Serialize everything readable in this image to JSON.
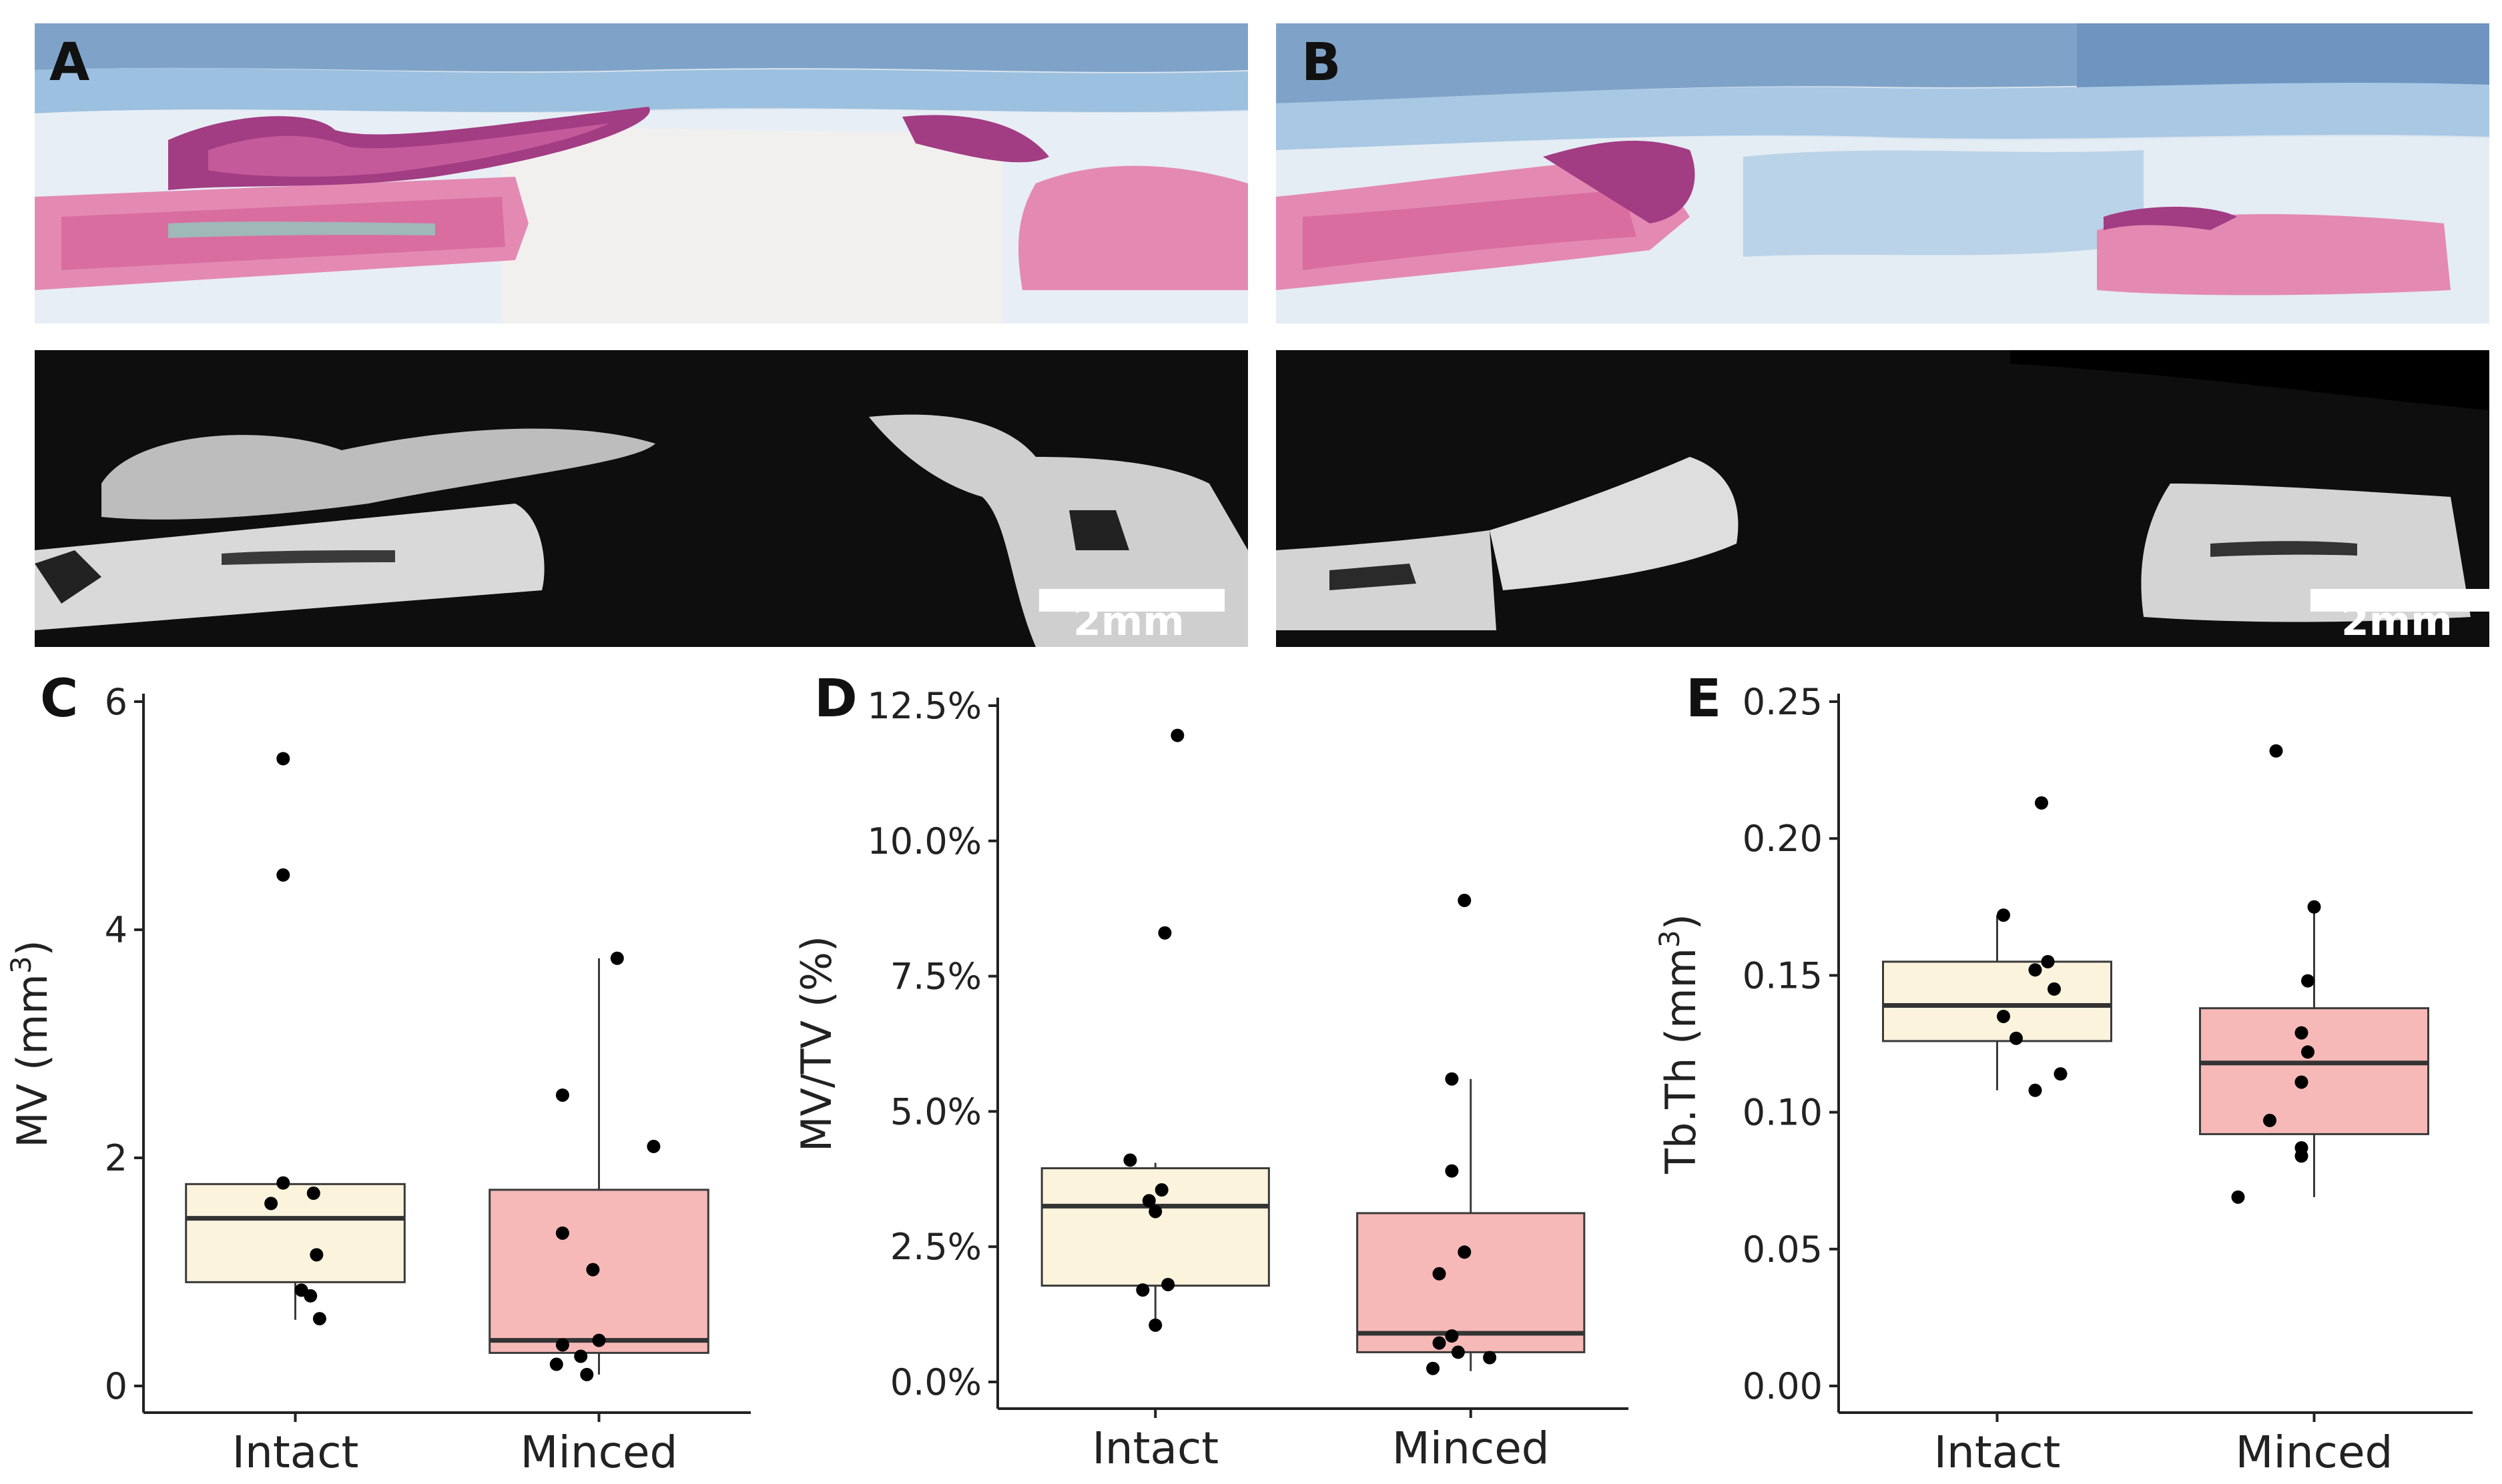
{
  "panels": {
    "a": "A",
    "b": "B",
    "c": "C",
    "d": "D",
    "e": "E"
  },
  "scale_bar": {
    "a": "2mm",
    "b": "2mm"
  },
  "colors": {
    "intact_fill": "#FBF3DC",
    "minced_fill": "#F6B9B8",
    "box_stroke": "#3a3a3a",
    "median": "#333333",
    "point": "#000000"
  },
  "chart_data": [
    {
      "type": "box",
      "panel": "C",
      "categories": [
        "Intact",
        "Minced"
      ],
      "ylabel": "MV (mm",
      "ylabel_sup": "3",
      "ylabel_end": ")",
      "ylim": [
        0,
        6
      ],
      "yticks": [
        0,
        2,
        4,
        6
      ],
      "ytick_labels": [
        "0",
        "2",
        "4",
        "6"
      ],
      "boxes": [
        {
          "name": "Intact",
          "q1": 0.91,
          "median": 1.47,
          "q3": 1.77,
          "whisker_low": 0.58,
          "whisker_high": 1.77
        },
        {
          "name": "Minced",
          "q1": 0.29,
          "median": 0.4,
          "q3": 1.72,
          "whisker_low": 0.1,
          "whisker_high": 3.75
        }
      ],
      "points": [
        {
          "group": 0,
          "jitter": -0.04,
          "y": 5.5
        },
        {
          "group": 0,
          "jitter": -0.04,
          "y": 4.48
        },
        {
          "group": 0,
          "jitter": -0.04,
          "y": 1.78
        },
        {
          "group": 0,
          "jitter": 0.06,
          "y": 1.69
        },
        {
          "group": 0,
          "jitter": -0.08,
          "y": 1.6
        },
        {
          "group": 0,
          "jitter": 0.07,
          "y": 1.15
        },
        {
          "group": 0,
          "jitter": 0.02,
          "y": 0.84
        },
        {
          "group": 0,
          "jitter": 0.05,
          "y": 0.79
        },
        {
          "group": 0,
          "jitter": 0.08,
          "y": 0.59
        },
        {
          "group": 1,
          "jitter": 0.06,
          "y": 3.75
        },
        {
          "group": 1,
          "jitter": -0.12,
          "y": 2.55
        },
        {
          "group": 1,
          "jitter": 0.18,
          "y": 2.1
        },
        {
          "group": 1,
          "jitter": -0.12,
          "y": 1.34
        },
        {
          "group": 1,
          "jitter": -0.02,
          "y": 1.02
        },
        {
          "group": 1,
          "jitter": 0.0,
          "y": 0.4
        },
        {
          "group": 1,
          "jitter": -0.12,
          "y": 0.36
        },
        {
          "group": 1,
          "jitter": -0.06,
          "y": 0.26
        },
        {
          "group": 1,
          "jitter": -0.14,
          "y": 0.19
        },
        {
          "group": 1,
          "jitter": -0.04,
          "y": 0.1
        }
      ]
    },
    {
      "type": "box",
      "panel": "D",
      "categories": [
        "Intact",
        "Minced"
      ],
      "ylabel": "MV/TV (%)",
      "ylim": [
        0,
        12.5
      ],
      "yticks": [
        0,
        2.5,
        5,
        7.5,
        10,
        12.5
      ],
      "ytick_labels": [
        "0.0%",
        "2.5%",
        "5.0%",
        "7.5%",
        "10.0%",
        "12.5%"
      ],
      "boxes": [
        {
          "name": "Intact",
          "q1": 1.78,
          "median": 3.25,
          "q3": 3.95,
          "whisker_low": 1.05,
          "whisker_high": 4.05
        },
        {
          "name": "Minced",
          "q1": 0.55,
          "median": 0.9,
          "q3": 3.12,
          "whisker_low": 0.2,
          "whisker_high": 5.6
        }
      ],
      "points": [
        {
          "group": 0,
          "jitter": 0.07,
          "y": 11.95
        },
        {
          "group": 0,
          "jitter": 0.03,
          "y": 8.3
        },
        {
          "group": 0,
          "jitter": -0.08,
          "y": 4.1
        },
        {
          "group": 0,
          "jitter": 0.02,
          "y": 3.55
        },
        {
          "group": 0,
          "jitter": -0.02,
          "y": 3.35
        },
        {
          "group": 0,
          "jitter": 0.0,
          "y": 3.15
        },
        {
          "group": 0,
          "jitter": 0.04,
          "y": 1.8
        },
        {
          "group": 0,
          "jitter": -0.04,
          "y": 1.7
        },
        {
          "group": 0,
          "jitter": 0.0,
          "y": 1.05
        },
        {
          "group": 1,
          "jitter": -0.02,
          "y": 8.9
        },
        {
          "group": 1,
          "jitter": -0.06,
          "y": 5.6
        },
        {
          "group": 1,
          "jitter": -0.06,
          "y": 3.9
        },
        {
          "group": 1,
          "jitter": -0.02,
          "y": 2.4
        },
        {
          "group": 1,
          "jitter": -0.1,
          "y": 2.0
        },
        {
          "group": 1,
          "jitter": -0.06,
          "y": 0.85
        },
        {
          "group": 1,
          "jitter": -0.1,
          "y": 0.72
        },
        {
          "group": 1,
          "jitter": -0.04,
          "y": 0.55
        },
        {
          "group": 1,
          "jitter": 0.06,
          "y": 0.45
        },
        {
          "group": 1,
          "jitter": -0.12,
          "y": 0.25
        }
      ]
    },
    {
      "type": "box",
      "panel": "E",
      "categories": [
        "Intact",
        "Minced"
      ],
      "ylabel": "Tb.Th (mm",
      "ylabel_sup": "3",
      "ylabel_end": ")",
      "ylim": [
        0,
        0.25
      ],
      "yticks": [
        0,
        0.05,
        0.1,
        0.15,
        0.2,
        0.25
      ],
      "ytick_labels": [
        "0.00",
        "0.05",
        "0.10",
        "0.15",
        "0.20",
        "0.25"
      ],
      "boxes": [
        {
          "name": "Intact",
          "q1": 0.126,
          "median": 0.139,
          "q3": 0.155,
          "whisker_low": 0.108,
          "whisker_high": 0.172
        },
        {
          "name": "Minced",
          "q1": 0.092,
          "median": 0.118,
          "q3": 0.138,
          "whisker_low": 0.069,
          "whisker_high": 0.175
        }
      ],
      "points": [
        {
          "group": 0,
          "jitter": 0.14,
          "y": 0.213
        },
        {
          "group": 0,
          "jitter": 0.02,
          "y": 0.172
        },
        {
          "group": 0,
          "jitter": 0.16,
          "y": 0.155
        },
        {
          "group": 0,
          "jitter": 0.12,
          "y": 0.152
        },
        {
          "group": 0,
          "jitter": 0.18,
          "y": 0.145
        },
        {
          "group": 0,
          "jitter": 0.02,
          "y": 0.135
        },
        {
          "group": 0,
          "jitter": 0.06,
          "y": 0.127
        },
        {
          "group": 0,
          "jitter": 0.2,
          "y": 0.114
        },
        {
          "group": 0,
          "jitter": 0.12,
          "y": 0.108
        },
        {
          "group": 1,
          "jitter": -0.12,
          "y": 0.232
        },
        {
          "group": 1,
          "jitter": 0.0,
          "y": 0.175
        },
        {
          "group": 1,
          "jitter": -0.02,
          "y": 0.148
        },
        {
          "group": 1,
          "jitter": -0.04,
          "y": 0.129
        },
        {
          "group": 1,
          "jitter": -0.02,
          "y": 0.122
        },
        {
          "group": 1,
          "jitter": -0.04,
          "y": 0.111
        },
        {
          "group": 1,
          "jitter": -0.14,
          "y": 0.097
        },
        {
          "group": 1,
          "jitter": -0.04,
          "y": 0.087
        },
        {
          "group": 1,
          "jitter": -0.04,
          "y": 0.084
        },
        {
          "group": 1,
          "jitter": -0.24,
          "y": 0.069
        }
      ]
    }
  ]
}
